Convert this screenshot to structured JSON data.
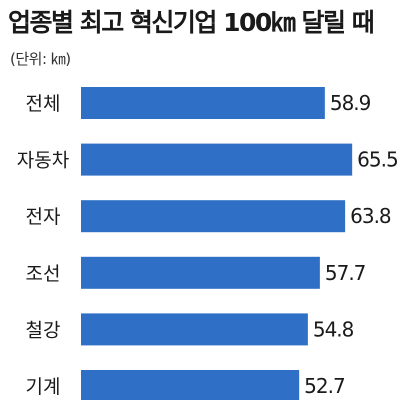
{
  "chart_data": {
    "type": "bar",
    "orientation": "horizontal",
    "title": "업종별 최고 혁신기업 100㎞ 달릴 때",
    "unit_note": "(단위: ㎞)",
    "categories": [
      "전체",
      "자동차",
      "전자",
      "조선",
      "철강",
      "기계"
    ],
    "values": [
      58.9,
      65.5,
      63.8,
      57.7,
      54.8,
      52.7
    ],
    "value_labels": [
      "58.9",
      "65.5",
      "63.8",
      "57.7",
      "54.8",
      "52.7"
    ],
    "bar_color": "#2f6fc6",
    "grid": false,
    "legend": "none"
  }
}
